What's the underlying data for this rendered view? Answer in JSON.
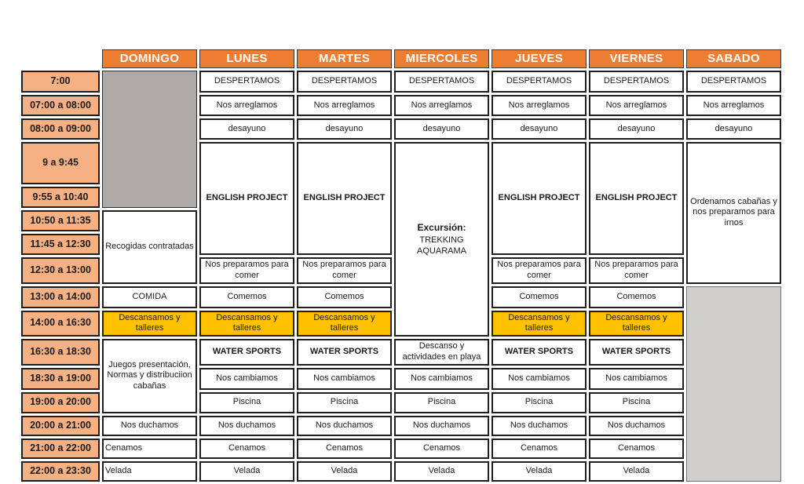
{
  "table": {
    "days": [
      "DOMINGO",
      "LUNES",
      "MARTES",
      "MIERCOLES",
      "JUEVES",
      "VIERNES",
      "SABADO"
    ],
    "slots": [
      "7:00",
      "07:00 a 08:00",
      "08:00 a 09:00",
      "9 a 9:45",
      "9:55 a 10:40",
      "10:50 a 11:35",
      "11:45 a 12:30",
      "12:30 a 13:00",
      "13:00 a 14:00",
      "14:00 a 16:30",
      "16:30 a 18:30",
      "18:30 a 19:00",
      "19:00 a 20:00",
      "20:00 a 21:00",
      "21:00 a 22:00",
      "22:00 a 23:30"
    ],
    "acts": {
      "despertamos": "DESPERTAMOS",
      "arreglamos": "Nos arreglamos",
      "desayuno": "desayuno",
      "english": "ENGLISH PROJECT",
      "excursion_title": "Excursión:",
      "excursion_line1": "TREKKING",
      "excursion_line2": "AQUARAMA",
      "ordenamos": "Ordenamos cabañas y nos preparamos para irnos",
      "recogidas": "Recogidas contratadas",
      "comida": "COMIDA",
      "preparamos": "Nos preparamos para comer",
      "comemos": "Comemos",
      "descansamos": "Descansamos y talleres",
      "water": "WATER SPORTS",
      "descanso_playa": "Descanso y actividades en playa",
      "juegos": "Juegos presentación, Normas y distribuciion cabañas",
      "cambiamos": "Nos cambiamos",
      "piscina": "Piscina",
      "duchamos": "Nos duchamos",
      "cenamos": "Cenamos",
      "velada": "Velada"
    },
    "colors": {
      "header_orange": "#ED7D31",
      "time_peach": "#F5B183",
      "highlight_yellow": "#FFC100",
      "gray_dark": "#ACA9A6",
      "gray_light": "#D0CFCD",
      "border_black": "#1F1F1F"
    }
  }
}
